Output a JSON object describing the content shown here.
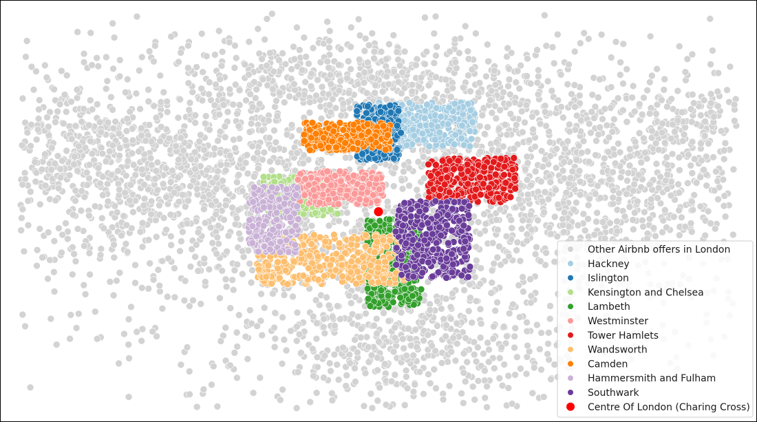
{
  "chart_data": {
    "type": "scatter",
    "title": "",
    "xlabel": "",
    "ylabel": "",
    "axes_visible": false,
    "legend_position": "lower-right",
    "background": {
      "label": "Other Airbnb offers in London",
      "color": "#d3d3d3",
      "regions": [
        {
          "center": [
            0.0,
            0.05
          ],
          "spread": [
            0.3,
            0.22
          ],
          "n": 2200
        },
        {
          "center": [
            -0.27,
            0.1
          ],
          "spread": [
            0.1,
            0.1
          ],
          "n": 500
        },
        {
          "center": [
            0.27,
            0.08
          ],
          "spread": [
            0.11,
            0.1
          ],
          "n": 500
        },
        {
          "center": [
            -0.03,
            0.32
          ],
          "spread": [
            0.12,
            0.06
          ],
          "n": 400
        },
        {
          "center": [
            0.04,
            -0.35
          ],
          "spread": [
            0.1,
            0.08
          ],
          "n": 400
        },
        {
          "center": [
            -0.4,
            0.18
          ],
          "spread": [
            0.05,
            0.07
          ],
          "n": 150
        },
        {
          "center": [
            0.4,
            0.23
          ],
          "spread": [
            0.04,
            0.04
          ],
          "n": 100
        }
      ],
      "x_range": [
        -0.46,
        0.46
      ],
      "y_range": [
        -0.5,
        0.5
      ]
    },
    "series": [
      {
        "name": "Hackney",
        "color": "#a6cee3",
        "center": [
          0.06,
          0.22
        ],
        "spread": [
          0.04,
          0.04
        ],
        "n": 320
      },
      {
        "name": "Islington",
        "color": "#1f78b4",
        "center": [
          0.0,
          0.2
        ],
        "spread": [
          0.018,
          0.05
        ],
        "n": 260
      },
      {
        "name": "Kensington and Chelsea",
        "color": "#b2df8a",
        "center": [
          -0.1,
          0.04
        ],
        "spread": [
          0.03,
          0.035
        ],
        "n": 200
      },
      {
        "name": "Lambeth",
        "color": "#33a02c",
        "center": [
          0.02,
          -0.13
        ],
        "spread": [
          0.022,
          0.08
        ],
        "n": 380
      },
      {
        "name": "Westminster",
        "color": "#fb9a99",
        "center": [
          -0.05,
          0.06
        ],
        "spread": [
          0.035,
          0.03
        ],
        "n": 260
      },
      {
        "name": "Tower Hamlets",
        "color": "#e31a1c",
        "center": [
          0.12,
          0.08
        ],
        "spread": [
          0.035,
          0.04
        ],
        "n": 320
      },
      {
        "name": "Wandsworth",
        "color": "#fdbf6f",
        "center": [
          -0.06,
          -0.12
        ],
        "spread": [
          0.06,
          0.045
        ],
        "n": 400
      },
      {
        "name": "Camden",
        "color": "#ff7f00",
        "center": [
          -0.04,
          0.19
        ],
        "spread": [
          0.035,
          0.025
        ],
        "n": 240
      },
      {
        "name": "Hammersmith and Fulham",
        "color": "#cab2d6",
        "center": [
          -0.135,
          -0.02
        ],
        "spread": [
          0.02,
          0.06
        ],
        "n": 220
      },
      {
        "name": "Southwark",
        "color": "#6a3d9a",
        "center": [
          0.07,
          -0.07
        ],
        "spread": [
          0.03,
          0.07
        ],
        "n": 360
      }
    ],
    "highlight": {
      "name": "Centre Of London (Charing Cross)",
      "color": "#ff0000",
      "x": 0.0,
      "y": 0.0
    }
  }
}
